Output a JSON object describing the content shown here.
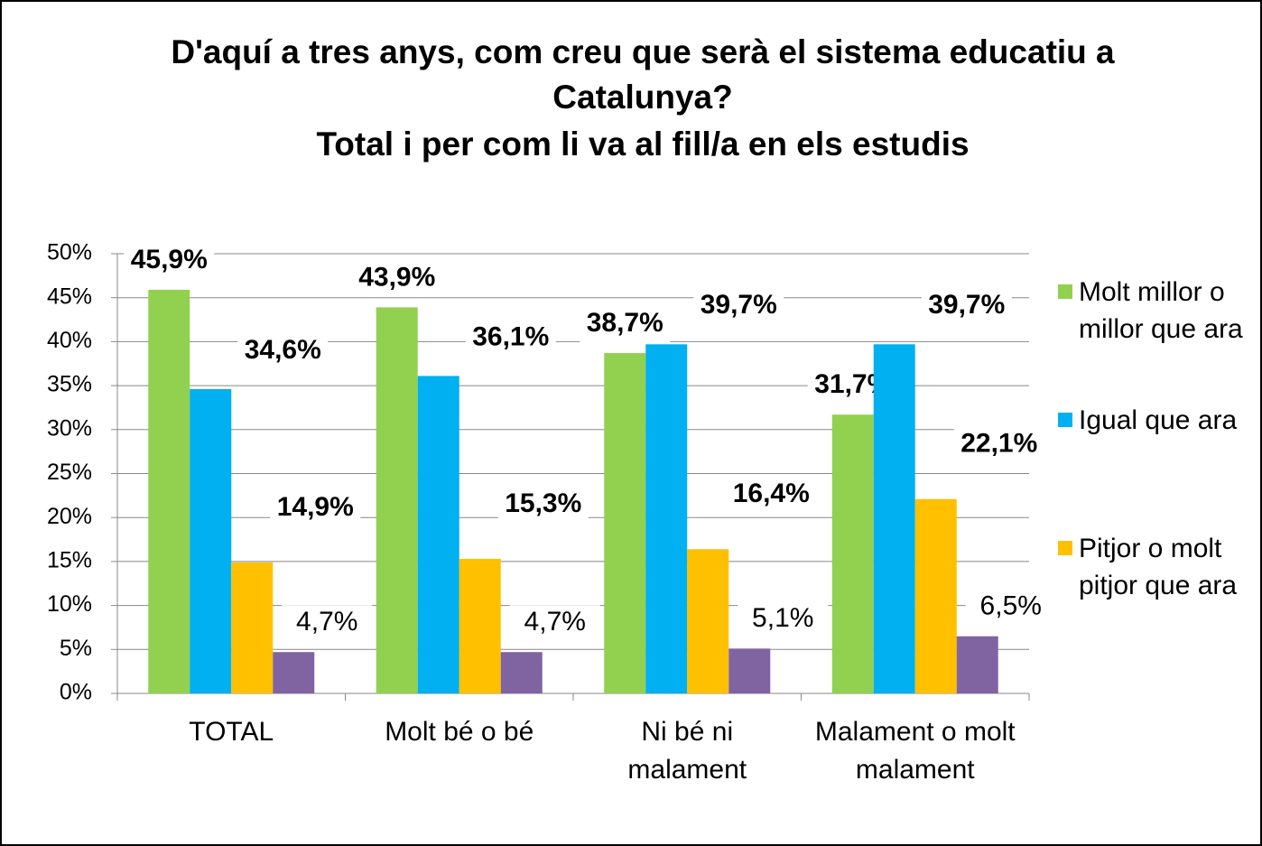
{
  "chart_data": {
    "type": "bar",
    "title": "D'aquí a tres anys, com creu que serà el sistema educatiu a Catalunya?",
    "subtitle": "Total i per com li va al fill/a en els estudis",
    "categories": [
      "TOTAL",
      "Molt bé o bé",
      "Ni bé ni malament",
      "Malament o molt malament"
    ],
    "series": [
      {
        "name": "Molt millor o millor que ara",
        "color": "#92d050",
        "values": [
          45.9,
          43.9,
          38.7,
          31.7
        ],
        "value_labels": [
          "45,9%",
          "43,9%",
          "38,7%",
          "31,7%"
        ]
      },
      {
        "name": "Igual que ara",
        "color": "#00b0f0",
        "values": [
          34.6,
          36.1,
          39.7,
          39.7
        ],
        "value_labels": [
          "34,6%",
          "36,1%",
          "39,7%",
          "39,7%"
        ]
      },
      {
        "name": "Pitjor o molt pitjor que ara",
        "color": "#ffc000",
        "values": [
          14.9,
          15.3,
          16.4,
          22.1
        ],
        "value_labels": [
          "14,9%",
          "15,3%",
          "16,4%",
          "22,1%"
        ]
      },
      {
        "color": "#8064a2",
        "values": [
          4.7,
          4.7,
          5.1,
          6.5
        ],
        "value_labels": [
          "4,7%",
          "4,7%",
          "5,1%",
          "6,5%"
        ]
      }
    ],
    "ylim": [
      0,
      50
    ],
    "yticks": [
      {
        "value": 0,
        "label": "0%"
      },
      {
        "value": 5,
        "label": "5%"
      },
      {
        "value": 10,
        "label": "10%"
      },
      {
        "value": 15,
        "label": "15%"
      },
      {
        "value": 20,
        "label": "20%"
      },
      {
        "value": 25,
        "label": "25%"
      },
      {
        "value": 30,
        "label": "30%"
      },
      {
        "value": 35,
        "label": "35%"
      },
      {
        "value": 40,
        "label": "40%"
      },
      {
        "value": 45,
        "label": "45%"
      },
      {
        "value": 50,
        "label": "50%"
      }
    ],
    "grid": true,
    "legend": "right"
  }
}
